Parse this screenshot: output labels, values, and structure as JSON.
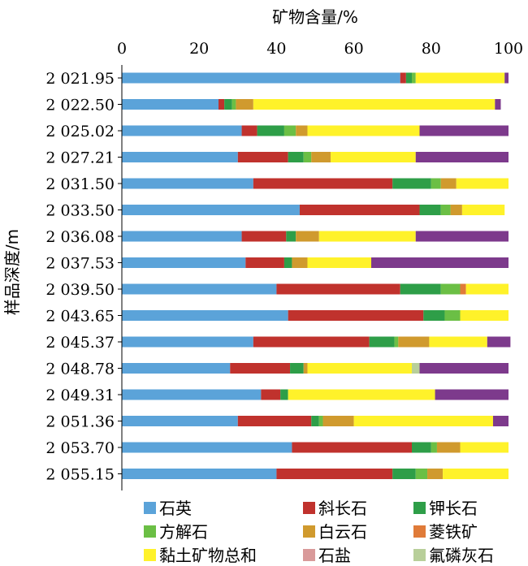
{
  "chart_data": {
    "type": "bar",
    "orientation": "horizontal",
    "stacked": true,
    "title": "",
    "xlabel": "矿物含量/%",
    "ylabel": "样品深度/m",
    "xlim": [
      0,
      100
    ],
    "x_ticks": [
      "0",
      "20",
      "40",
      "60",
      "80",
      "100"
    ],
    "x_axis_position": "top",
    "grid": false,
    "legend_position": "bottom",
    "categories": [
      "2 021.95",
      "2 022.50",
      "2 025.02",
      "2 027.21",
      "2 031.50",
      "2 033.50",
      "2 036.08",
      "2 037.53",
      "2 039.50",
      "2 043.65",
      "2 045.37",
      "2 048.78",
      "2 049.31",
      "2 051.36",
      "2 053.70",
      "2 055.15"
    ],
    "series": [
      {
        "name": "石英",
        "color": "#5BA3D9",
        "values": [
          72,
          25,
          31,
          30,
          34,
          46,
          31,
          32,
          40,
          43,
          34,
          28,
          36,
          30,
          44,
          40
        ]
      },
      {
        "name": "斜长石",
        "color": "#C0322D",
        "values": [
          1.5,
          1.5,
          4,
          13,
          36,
          31,
          11.5,
          10,
          32,
          35,
          30,
          15.5,
          5,
          19,
          31,
          30
        ]
      },
      {
        "name": "钾长石",
        "color": "#2E9E48",
        "values": [
          1.5,
          2,
          7,
          4,
          10,
          5.5,
          2.5,
          2,
          10.5,
          5.5,
          6.5,
          3.5,
          2,
          2,
          5,
          6
        ]
      },
      {
        "name": "方解石",
        "color": "#6BBF45",
        "values": [
          1,
          1,
          3,
          2,
          2.5,
          2.5,
          0,
          0,
          5,
          4,
          1,
          0,
          0,
          1,
          1.5,
          3
        ]
      },
      {
        "name": "白云石",
        "color": "#D09A2E",
        "values": [
          0,
          4.5,
          3,
          5,
          4,
          3,
          6,
          4,
          0,
          0,
          8,
          1,
          0,
          8,
          6,
          4
        ]
      },
      {
        "name": "菱铁矿",
        "color": "#E07B39",
        "values": [
          0,
          0,
          0,
          0,
          0,
          0,
          0,
          0,
          1.5,
          0,
          0,
          0,
          0,
          0,
          0,
          0
        ]
      },
      {
        "name": "黏土矿物总和",
        "color": "#FFF22A",
        "values": [
          23,
          62.5,
          29,
          22,
          13.5,
          11,
          25,
          16.5,
          11,
          12.5,
          15,
          27,
          38,
          36,
          12.5,
          17
        ]
      },
      {
        "name": "石盐",
        "color": "#D99A9A",
        "values": [
          0,
          0,
          0,
          0,
          0,
          0,
          0,
          0,
          0,
          0,
          0,
          0,
          0,
          0,
          0,
          0
        ]
      },
      {
        "name": "氟磷灰石",
        "color": "#B8CF9A",
        "values": [
          0,
          0,
          0,
          0,
          0,
          0,
          0,
          0,
          0,
          0,
          0,
          2,
          0,
          0,
          0,
          0
        ]
      },
      {
        "name": "",
        "color": "#7D3A8C",
        "values": [
          1,
          1.5,
          23,
          24,
          0,
          0,
          24,
          35.5,
          0,
          0,
          6,
          23,
          19,
          4,
          0,
          0
        ]
      }
    ]
  }
}
